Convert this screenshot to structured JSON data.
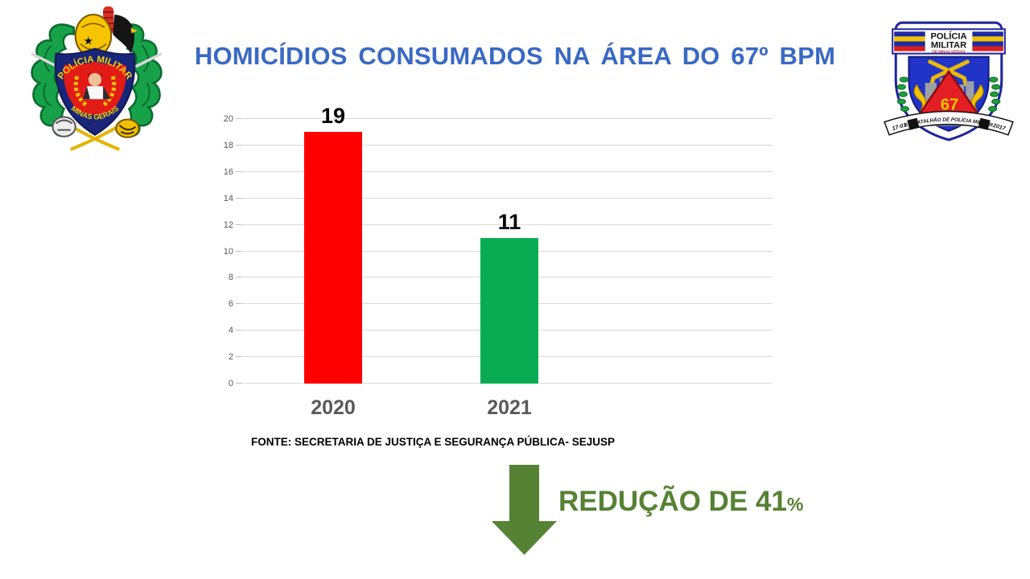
{
  "slide": {
    "title": "HOMICÍDIOS CONSUMADOS NA ÁREA DO 67º BPM",
    "source_note": "FONTE: SECRETARIA DE JUSTIÇA E SEGURANÇA PÚBLICA- SEJUSP",
    "reduction": {
      "text": "REDUÇÃO DE 41",
      "percent_sign": "%"
    }
  },
  "logos": {
    "left": {
      "name": "brasao-policia-militar-minas-gerais",
      "band_text": "POLÍCIA MILITAR",
      "bottom_text": "MINAS GERAIS"
    },
    "right": {
      "name": "emblema-67-batalhao",
      "top_line1": "POLÍCIA",
      "top_line2": "MILITAR",
      "top_line3": "DE MINAS GERAIS",
      "unit_number": "67",
      "banner_left": "17-01",
      "banner_center": "67º BATALHÃO DE POLÍCIA MILITAR",
      "banner_right": "2017"
    }
  },
  "chart_data": {
    "type": "bar",
    "title": "",
    "xlabel": "",
    "ylabel": "",
    "categories": [
      "2020",
      "2021"
    ],
    "values": [
      19,
      11
    ],
    "data_labels": [
      "19",
      "11"
    ],
    "bar_colors": [
      "#FF0000",
      "#0AAC53"
    ],
    "ylim": [
      0,
      20
    ],
    "yticks": [
      0,
      2,
      4,
      6,
      8,
      10,
      12,
      14,
      16,
      18,
      20
    ],
    "grid": true,
    "legend": false
  },
  "colors": {
    "title_blue": "#3A69C4",
    "bar_red": "#FF0000",
    "bar_green": "#0AAC53",
    "axis_label_gray": "#595959",
    "gridline_gray": "#D9D9D9",
    "arrow_green": "#568234",
    "data_label_black": "#000000"
  }
}
